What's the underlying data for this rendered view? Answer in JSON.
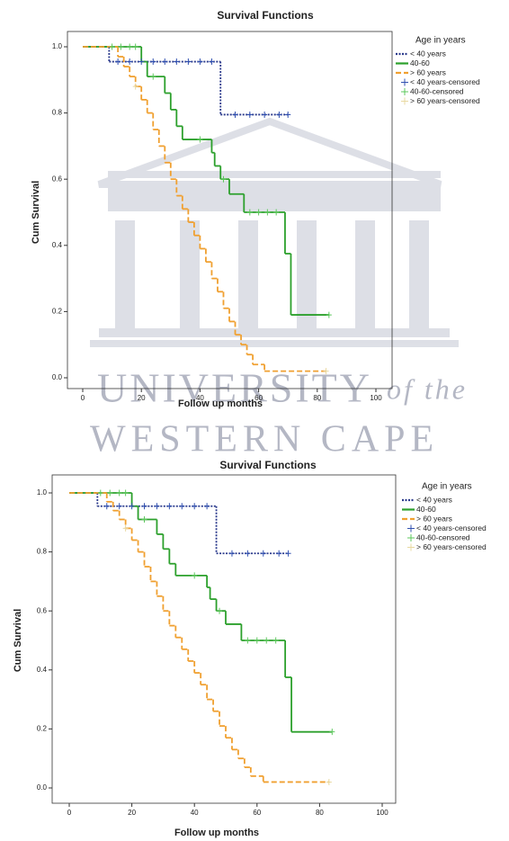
{
  "watermark": {
    "line1": "UNIVERSITY",
    "line2": "of the",
    "line3": "WESTERN CAPE"
  },
  "chart_data": [
    {
      "type": "survival",
      "title": "Survival Functions",
      "x_label": "Follow up months",
      "y_label": "Cum Survival",
      "legend_title": "Age in years",
      "xlim": [
        0,
        100
      ],
      "ylim": [
        0,
        1
      ],
      "xticks": [
        0,
        20,
        40,
        60,
        80,
        100
      ],
      "yticks": [
        {
          "value": 0,
          "label": "0.0"
        },
        {
          "value": 0.2,
          "label": "0.2"
        },
        {
          "value": 0.4,
          "label": "0.4"
        },
        {
          "value": 0.6,
          "label": "0.6"
        },
        {
          "value": 0.8,
          "label": "0.8"
        },
        {
          "value": 1,
          "label": "1.0"
        }
      ],
      "series": [
        {
          "name": "< 40 years",
          "color": "#2b3a8c",
          "style": "dotted",
          "x": [
            0,
            9,
            47,
            70
          ],
          "values": [
            1,
            0.955,
            0.795,
            0.795
          ]
        },
        {
          "name": "40-60",
          "color": "#2ca02c",
          "style": "solid",
          "x": [
            0,
            20,
            22,
            28,
            30,
            32,
            34,
            44,
            45,
            47,
            50,
            55,
            69,
            71,
            84
          ],
          "values": [
            1,
            0.955,
            0.91,
            0.86,
            0.81,
            0.76,
            0.72,
            0.68,
            0.64,
            0.6,
            0.555,
            0.5,
            0.375,
            0.19,
            0.19
          ]
        },
        {
          "name": "> 60 years",
          "color": "#f0a030",
          "style": "dashed",
          "x": [
            0,
            12,
            14,
            16,
            18,
            20,
            22,
            24,
            26,
            28,
            30,
            32,
            34,
            36,
            38,
            40,
            42,
            44,
            46,
            48,
            50,
            52,
            54,
            56,
            58,
            62,
            83
          ],
          "values": [
            1,
            0.97,
            0.94,
            0.91,
            0.88,
            0.84,
            0.8,
            0.75,
            0.7,
            0.65,
            0.6,
            0.55,
            0.51,
            0.47,
            0.43,
            0.39,
            0.35,
            0.3,
            0.26,
            0.21,
            0.17,
            0.13,
            0.1,
            0.07,
            0.04,
            0.02,
            0.02
          ]
        },
        {
          "name": "< 40 years-censored",
          "color": "#3050b0",
          "style": "censored",
          "x": [
            12,
            16,
            20,
            24,
            28,
            32,
            36,
            40,
            44,
            52,
            57,
            62,
            67,
            70
          ],
          "values": [
            0.955,
            0.955,
            0.955,
            0.955,
            0.955,
            0.955,
            0.955,
            0.955,
            0.955,
            0.795,
            0.795,
            0.795,
            0.795,
            0.795
          ]
        },
        {
          "name": "40-60-censored",
          "color": "#5cc85c",
          "style": "censored",
          "x": [
            10,
            13,
            16,
            18,
            24,
            40,
            48,
            57,
            60,
            63,
            66,
            84
          ],
          "values": [
            1,
            1,
            1,
            1,
            0.91,
            0.72,
            0.6,
            0.5,
            0.5,
            0.5,
            0.5,
            0.19
          ]
        },
        {
          "name": "> 60 years-censored",
          "color": "#e8d8a0",
          "style": "censored",
          "x": [
            18,
            83
          ],
          "values": [
            0.88,
            0.02
          ]
        }
      ]
    },
    {
      "type": "survival",
      "title": "Survival Functions",
      "x_label": "Follow up months",
      "y_label": "Cum Survival",
      "legend_title": "Age in years",
      "xlim": [
        0,
        100
      ],
      "ylim": [
        0,
        1
      ],
      "xticks": [
        0,
        20,
        40,
        60,
        80,
        100
      ],
      "yticks": [
        {
          "value": 0,
          "label": "0.0"
        },
        {
          "value": 0.2,
          "label": "0.2"
        },
        {
          "value": 0.4,
          "label": "0.4"
        },
        {
          "value": 0.6,
          "label": "0.6"
        },
        {
          "value": 0.8,
          "label": "0.8"
        },
        {
          "value": 1,
          "label": "1.0"
        }
      ],
      "series": [
        {
          "name": "< 40 years",
          "color": "#2b3a8c",
          "style": "dotted",
          "x": [
            0,
            9,
            47,
            70
          ],
          "values": [
            1,
            0.955,
            0.795,
            0.795
          ]
        },
        {
          "name": "40-60",
          "color": "#2ca02c",
          "style": "solid",
          "x": [
            0,
            20,
            22,
            28,
            30,
            32,
            34,
            44,
            45,
            47,
            50,
            55,
            69,
            71,
            84
          ],
          "values": [
            1,
            0.955,
            0.91,
            0.86,
            0.81,
            0.76,
            0.72,
            0.68,
            0.64,
            0.6,
            0.555,
            0.5,
            0.375,
            0.19,
            0.19
          ]
        },
        {
          "name": "> 60 years",
          "color": "#f0a030",
          "style": "dashed",
          "x": [
            0,
            12,
            14,
            16,
            18,
            20,
            22,
            24,
            26,
            28,
            30,
            32,
            34,
            36,
            38,
            40,
            42,
            44,
            46,
            48,
            50,
            52,
            54,
            56,
            58,
            62,
            83
          ],
          "values": [
            1,
            0.97,
            0.94,
            0.91,
            0.88,
            0.84,
            0.8,
            0.75,
            0.7,
            0.65,
            0.6,
            0.55,
            0.51,
            0.47,
            0.43,
            0.39,
            0.35,
            0.3,
            0.26,
            0.21,
            0.17,
            0.13,
            0.1,
            0.07,
            0.04,
            0.02,
            0.02
          ]
        },
        {
          "name": "< 40 years-censored",
          "color": "#3050b0",
          "style": "censored",
          "x": [
            12,
            16,
            20,
            24,
            28,
            32,
            36,
            40,
            44,
            52,
            57,
            62,
            67,
            70
          ],
          "values": [
            0.955,
            0.955,
            0.955,
            0.955,
            0.955,
            0.955,
            0.955,
            0.955,
            0.955,
            0.795,
            0.795,
            0.795,
            0.795,
            0.795
          ]
        },
        {
          "name": "40-60-censored",
          "color": "#5cc85c",
          "style": "censored",
          "x": [
            10,
            13,
            16,
            18,
            24,
            40,
            48,
            57,
            60,
            63,
            66,
            84
          ],
          "values": [
            1,
            1,
            1,
            1,
            0.91,
            0.72,
            0.6,
            0.5,
            0.5,
            0.5,
            0.5,
            0.19
          ]
        },
        {
          "name": "> 60 years-censored",
          "color": "#e8d8a0",
          "style": "censored",
          "x": [
            18,
            83
          ],
          "values": [
            0.88,
            0.02
          ]
        }
      ]
    }
  ]
}
